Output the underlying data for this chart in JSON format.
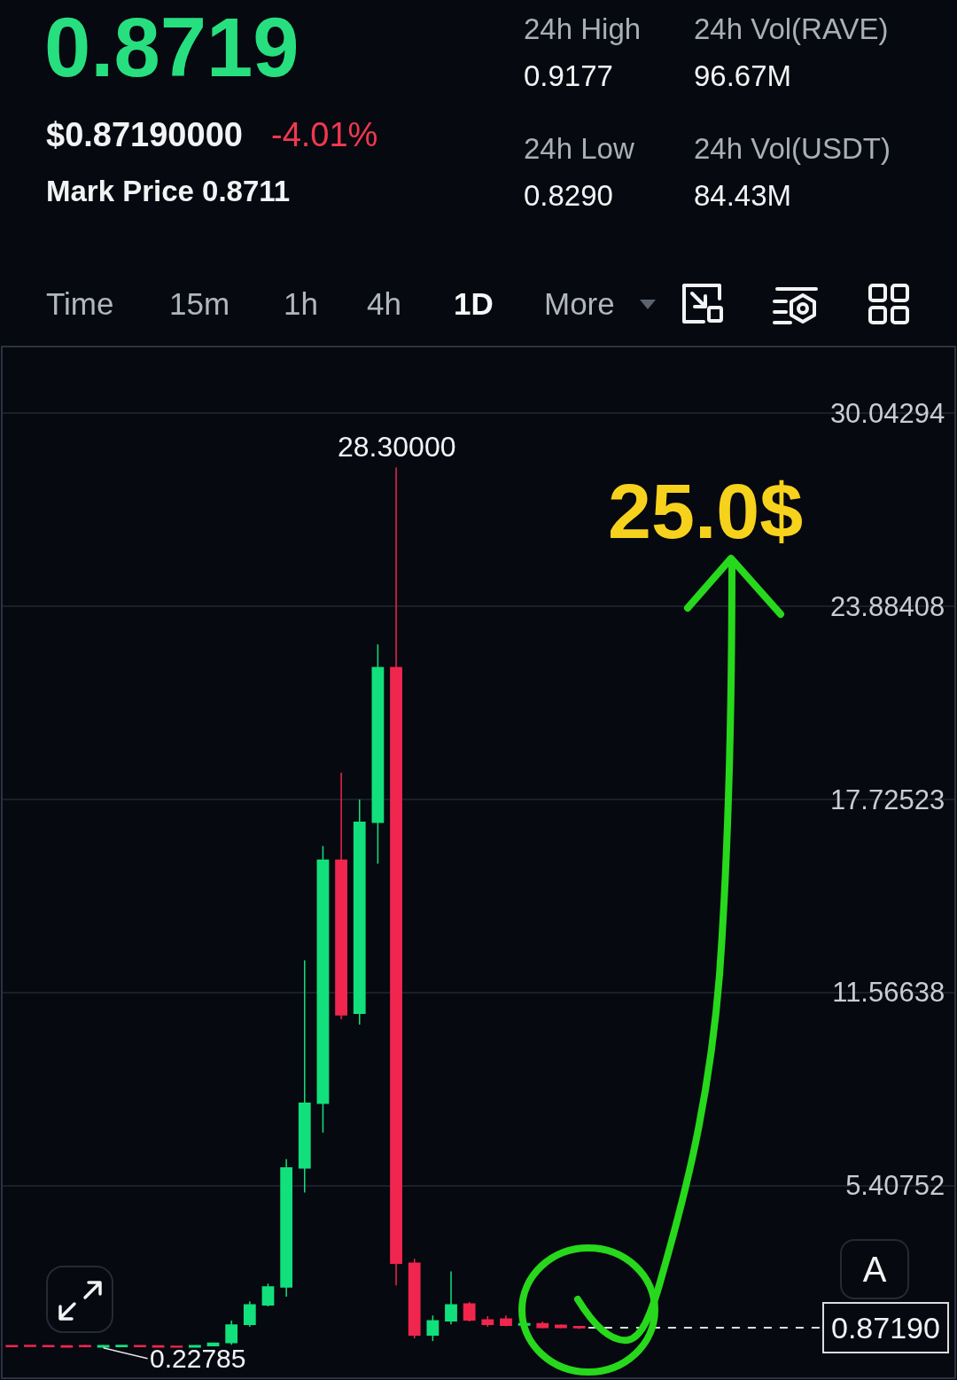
{
  "chart_data": {
    "type": "candlestick",
    "title": "0.8719",
    "annotations": [
      "$0.87190000",
      "-4.01%",
      "Mark Price 0.8711",
      "24h High",
      "0.9177",
      "24h Low",
      "0.8290",
      "24h Vol(RAVE)",
      "96.67M",
      "24h Vol(USDT)",
      "84.43M",
      "Time",
      "15m",
      "1h",
      "4h",
      "1D",
      "More",
      "A",
      "25.0$",
      {
        "text": "28.30000",
        "y": 28.3
      },
      {
        "text": "0.22785",
        "y": 0.22785
      }
    ],
    "categories": [
      null,
      null,
      null,
      null,
      null,
      null,
      null,
      null,
      null,
      null,
      null,
      null,
      null,
      null,
      null,
      null,
      null,
      null,
      null,
      null,
      null,
      null,
      null,
      null,
      null,
      null,
      null,
      null,
      null,
      null,
      null,
      null,
      null,
      null,
      null,
      null,
      null,
      null,
      null,
      null,
      null,
      null,
      null,
      null,
      null,
      null,
      null,
      null,
      null,
      null,
      null,
      null
    ],
    "ohlc": [
      [
        0.3,
        0.32,
        0.26,
        0.27
      ],
      [
        0.31,
        0.33,
        0.27,
        0.28
      ],
      [
        0.3,
        0.32,
        0.26,
        0.27
      ],
      [
        0.29,
        0.31,
        0.25,
        0.26
      ],
      [
        0.3,
        0.33,
        0.25,
        0.27
      ],
      [
        0.26,
        0.33,
        0.22785,
        0.3
      ],
      [
        0.27,
        0.33,
        0.25,
        0.31
      ],
      [
        0.3,
        0.32,
        0.26,
        0.27
      ],
      [
        0.29,
        0.31,
        0.25,
        0.26
      ],
      [
        0.28,
        0.3,
        0.24,
        0.26
      ],
      [
        0.26,
        0.32,
        0.25,
        0.3
      ],
      [
        0.3,
        0.4,
        0.28,
        0.38
      ],
      [
        0.4,
        1.1,
        0.33,
        0.96
      ],
      [
        0.98,
        1.71,
        0.9,
        1.6
      ],
      [
        1.6,
        2.28,
        1.55,
        2.17
      ],
      [
        2.17,
        6.25,
        1.86,
        5.97
      ],
      [
        5.97,
        12.59,
        5.18,
        8.03
      ],
      [
        8.03,
        16.23,
        7.1,
        15.78
      ],
      [
        15.78,
        18.57,
        10.71,
        10.85
      ],
      [
        10.9,
        17.72,
        10.54,
        16.99
      ],
      [
        16.99,
        22.66,
        15.67,
        21.92
      ],
      [
        21.92,
        28.3,
        2.22,
        2.93
      ],
      [
        2.93,
        3.07,
        0.53,
        0.64
      ],
      [
        0.64,
        1.26,
        0.45,
        1.09
      ],
      [
        1.09,
        2.67,
        0.98,
        1.6
      ],
      [
        1.63,
        1.69,
        1.07,
        1.12
      ],
      [
        1.12,
        1.24,
        0.9,
        0.98
      ],
      [
        1.15,
        1.26,
        0.92,
        0.95
      ],
      [
        0.96,
        1.07,
        0.9,
        1.0
      ],
      [
        1.0,
        1.07,
        0.85,
        0.88
      ],
      [
        0.95,
        0.98,
        0.85,
        0.88
      ],
      [
        0.91,
        0.9177,
        0.829,
        0.8719
      ],
      null,
      null,
      null,
      null,
      null,
      null,
      null,
      null,
      null,
      null,
      null,
      null,
      null,
      null,
      null,
      null,
      null,
      null,
      null,
      null
    ],
    "colors": [
      "#f0264e",
      "#f0264e",
      "#f0264e",
      "#f0264e",
      "#f0264e",
      "#12e07c",
      "#12e07c",
      "#f0264e",
      "#f0264e",
      "#f0264e",
      "#12e07c",
      "#12e07c",
      "#12e07c",
      "#12e07c",
      "#12e07c",
      "#12e07c",
      "#12e07c",
      "#12e07c",
      "#f0264e",
      "#12e07c",
      "#12e07c",
      "#f0264e",
      "#f0264e",
      "#12e07c",
      "#12e07c",
      "#f0264e",
      "#f0264e",
      "#f0264e",
      "#12e07c",
      "#f0264e",
      "#f0264e",
      "#f0264e",
      null,
      null,
      null,
      null,
      null,
      null,
      null,
      null,
      null,
      null,
      null,
      null,
      null,
      null,
      null,
      null,
      null,
      null,
      null,
      null
    ],
    "ylim": [
      -0.71,
      32.13
    ],
    "yticks": [
      5.40752,
      11.56638,
      17.72523,
      23.88408,
      30.04294
    ],
    "ref_lines": [
      {
        "axis": "y",
        "value": 0.8719,
        "label": "0.87190",
        "color": "#d9dce1",
        "line_style": "dashed"
      }
    ],
    "grid": "y",
    "tick_labels": "y"
  }
}
